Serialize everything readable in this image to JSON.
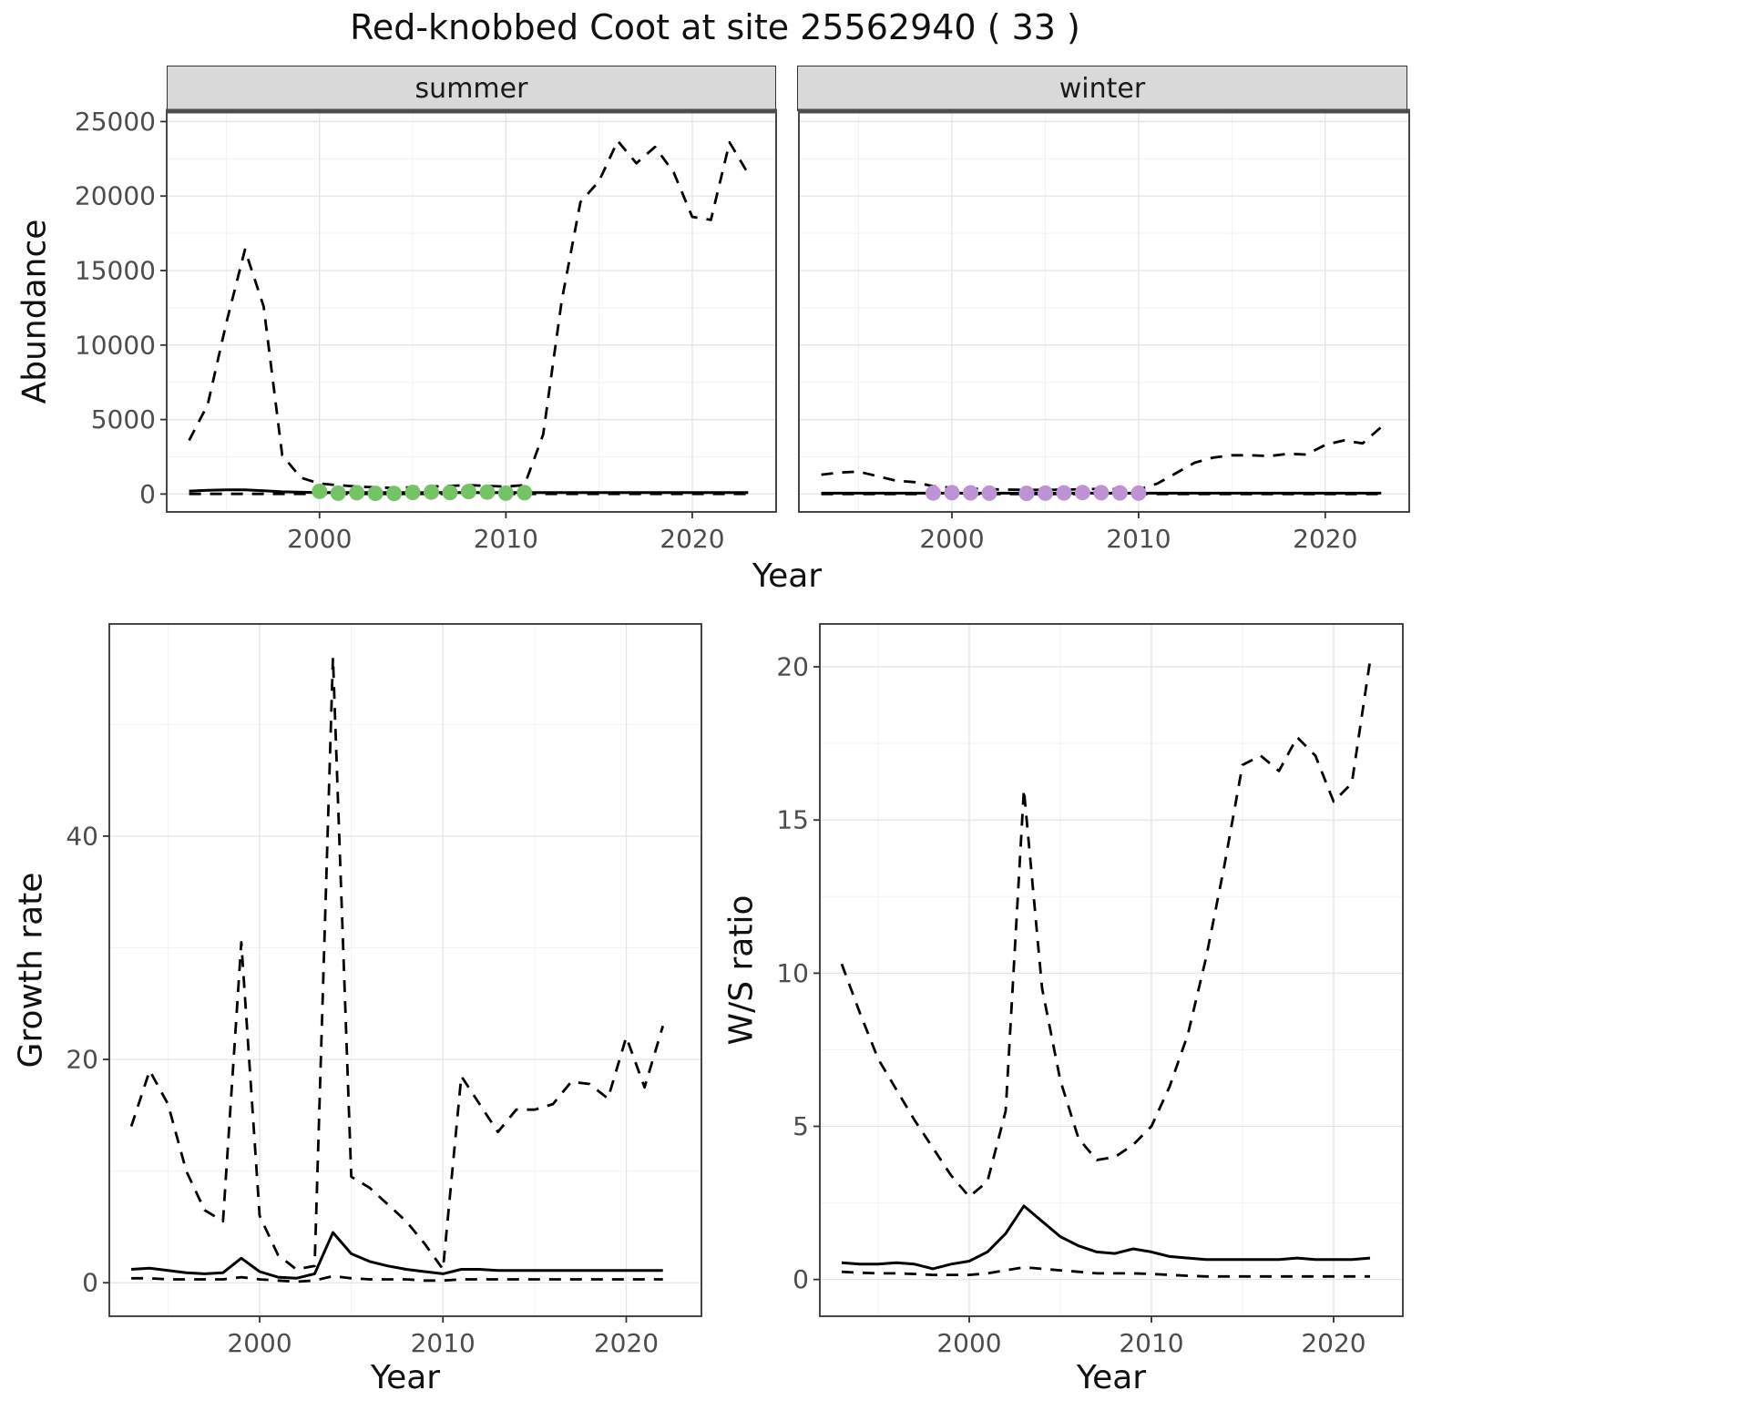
{
  "title": "Red-knobbed Coot at site 25562940 ( 33 )",
  "facets": {
    "summer": "summer",
    "winter": "winter"
  },
  "axis_labels": {
    "x": "Year",
    "abundance": "Abundance",
    "growth_rate": "Growth rate",
    "ws_ratio": "W/S ratio"
  },
  "colors": {
    "line": "#000000",
    "grid_major": "#e5e5e5",
    "grid_minor": "#f2f2f2",
    "panel_border": "#333333",
    "strip_background": "#d9d9d9",
    "summer_points": "#74c365",
    "winter_points": "#bd93d6"
  },
  "chart_data": [
    {
      "id": "abundance-summer",
      "type": "line",
      "facet_label": "summer",
      "xlabel": "Year",
      "ylabel": "Abundance",
      "xlim": [
        1991.8,
        2024.5
      ],
      "ylim": [
        -1200,
        25700
      ],
      "xticks": [
        2000,
        2010,
        2020
      ],
      "yticks": [
        0,
        5000,
        10000,
        15000,
        20000,
        25000
      ],
      "grid": true,
      "series": [
        {
          "name": "upper-ci",
          "style": "dashed",
          "x": [
            1993,
            1994,
            1995,
            1996,
            1997,
            1998,
            1999,
            2000,
            2001,
            2002,
            2003,
            2004,
            2005,
            2006,
            2007,
            2008,
            2009,
            2010,
            2011,
            2012,
            2013,
            2014,
            2015,
            2016,
            2017,
            2018,
            2019,
            2020,
            2021,
            2022,
            2023
          ],
          "y": [
            3600,
            6000,
            11500,
            16400,
            12600,
            2600,
            1100,
            700,
            600,
            500,
            450,
            400,
            450,
            500,
            550,
            600,
            550,
            500,
            600,
            4000,
            13000,
            19600,
            21000,
            23700,
            22200,
            23300,
            21600,
            18600,
            18400,
            23600,
            21500
          ]
        },
        {
          "name": "mean",
          "style": "solid",
          "x": [
            1993,
            1994,
            1995,
            1996,
            1997,
            1998,
            1999,
            2000,
            2001,
            2002,
            2003,
            2004,
            2005,
            2006,
            2007,
            2008,
            2009,
            2010,
            2011,
            2012,
            2013,
            2014,
            2015,
            2016,
            2017,
            2018,
            2019,
            2020,
            2021,
            2022,
            2023
          ],
          "y": [
            200,
            250,
            280,
            280,
            220,
            150,
            120,
            100,
            100,
            100,
            100,
            100,
            100,
            100,
            100,
            100,
            100,
            100,
            100,
            100,
            100,
            100,
            100,
            100,
            100,
            100,
            100,
            100,
            100,
            100,
            100
          ]
        },
        {
          "name": "lower-ci",
          "style": "dashed",
          "x": [
            1993,
            1994,
            1995,
            1996,
            1997,
            1998,
            1999,
            2000,
            2001,
            2002,
            2003,
            2004,
            2005,
            2006,
            2007,
            2008,
            2009,
            2010,
            2011,
            2012,
            2013,
            2014,
            2015,
            2016,
            2017,
            2018,
            2019,
            2020,
            2021,
            2022,
            2023
          ],
          "y": [
            10,
            10,
            10,
            10,
            10,
            10,
            10,
            10,
            10,
            10,
            10,
            10,
            10,
            10,
            10,
            10,
            10,
            10,
            10,
            10,
            10,
            10,
            10,
            10,
            10,
            10,
            10,
            10,
            10,
            10,
            10
          ]
        },
        {
          "name": "observed-counts",
          "style": "points",
          "color": "#74c365",
          "x": [
            2000,
            2001,
            2002,
            2003,
            2004,
            2005,
            2006,
            2007,
            2008,
            2009,
            2010,
            2011
          ],
          "y": [
            180,
            60,
            90,
            50,
            40,
            110,
            130,
            100,
            170,
            130,
            60,
            90
          ]
        }
      ]
    },
    {
      "id": "abundance-winter",
      "type": "line",
      "facet_label": "winter",
      "xlabel": "Year",
      "ylabel": "Abundance",
      "xlim": [
        1991.8,
        2024.5
      ],
      "ylim": [
        -1200,
        25700
      ],
      "xticks": [
        2000,
        2010,
        2020
      ],
      "yticks": [
        0,
        5000,
        10000,
        15000,
        20000,
        25000
      ],
      "grid": true,
      "series": [
        {
          "name": "upper-ci",
          "style": "dashed",
          "x": [
            1993,
            1994,
            1995,
            1996,
            1997,
            1998,
            1999,
            2000,
            2001,
            2002,
            2003,
            2004,
            2005,
            2006,
            2007,
            2008,
            2009,
            2010,
            2011,
            2012,
            2013,
            2014,
            2015,
            2016,
            2017,
            2018,
            2019,
            2020,
            2021,
            2022,
            2023
          ],
          "y": [
            1300,
            1450,
            1500,
            1200,
            900,
            800,
            520,
            420,
            360,
            320,
            300,
            280,
            280,
            300,
            320,
            350,
            320,
            300,
            700,
            1400,
            2100,
            2450,
            2600,
            2600,
            2550,
            2700,
            2650,
            3300,
            3600,
            3400,
            4500
          ]
        },
        {
          "name": "mean",
          "style": "solid",
          "x": [
            1993,
            1994,
            1995,
            1996,
            1997,
            1998,
            1999,
            2000,
            2001,
            2002,
            2003,
            2004,
            2005,
            2006,
            2007,
            2008,
            2009,
            2010,
            2011,
            2012,
            2013,
            2014,
            2015,
            2016,
            2017,
            2018,
            2019,
            2020,
            2021,
            2022,
            2023
          ],
          "y": [
            60,
            60,
            60,
            60,
            60,
            60,
            60,
            60,
            60,
            60,
            60,
            60,
            60,
            60,
            60,
            60,
            60,
            60,
            60,
            60,
            60,
            60,
            60,
            60,
            60,
            60,
            60,
            60,
            60,
            60,
            60
          ]
        },
        {
          "name": "lower-ci",
          "style": "dashed",
          "x": [
            1993,
            1994,
            1995,
            1996,
            1997,
            1998,
            1999,
            2000,
            2001,
            2002,
            2003,
            2004,
            2005,
            2006,
            2007,
            2008,
            2009,
            2010,
            2011,
            2012,
            2013,
            2014,
            2015,
            2016,
            2017,
            2018,
            2019,
            2020,
            2021,
            2022,
            2023
          ],
          "y": [
            5,
            5,
            5,
            5,
            5,
            5,
            5,
            5,
            5,
            5,
            5,
            5,
            5,
            5,
            5,
            5,
            5,
            5,
            5,
            5,
            5,
            5,
            5,
            5,
            5,
            5,
            5,
            5,
            5,
            5,
            5
          ]
        },
        {
          "name": "observed-counts",
          "style": "points",
          "color": "#bd93d6",
          "x": [
            1999,
            2000,
            2001,
            2002,
            2004,
            2005,
            2006,
            2007,
            2008,
            2009,
            2010
          ],
          "y": [
            70,
            90,
            80,
            60,
            50,
            60,
            80,
            100,
            90,
            80,
            60
          ]
        }
      ]
    },
    {
      "id": "growth-rate",
      "type": "line",
      "xlabel": "Year",
      "ylabel": "Growth rate",
      "xlim": [
        1991.8,
        2024.1
      ],
      "ylim": [
        -3,
        59
      ],
      "xticks": [
        2000,
        2010,
        2020
      ],
      "yticks": [
        0,
        20,
        40
      ],
      "grid": true,
      "series": [
        {
          "name": "upper-ci",
          "style": "dashed",
          "x": [
            1993,
            1994,
            1995,
            1996,
            1997,
            1998,
            1999,
            2000,
            2001,
            2002,
            2003,
            2004,
            2005,
            2006,
            2007,
            2008,
            2009,
            2010,
            2011,
            2012,
            2013,
            2014,
            2015,
            2016,
            2017,
            2018,
            2019,
            2020,
            2021,
            2022
          ],
          "y": [
            14,
            19,
            16,
            10,
            6.5,
            5.5,
            30.5,
            6,
            2.5,
            1.2,
            1.5,
            56,
            9.5,
            8.5,
            7,
            5.5,
            3.5,
            1.2,
            18.5,
            16,
            13.5,
            15.5,
            15.5,
            16,
            18,
            17.8,
            16.5,
            22,
            17.5,
            23
          ]
        },
        {
          "name": "mean",
          "style": "solid",
          "x": [
            1993,
            1994,
            1995,
            1996,
            1997,
            1998,
            1999,
            2000,
            2001,
            2002,
            2003,
            2004,
            2005,
            2006,
            2007,
            2008,
            2009,
            2010,
            2011,
            2012,
            2013,
            2014,
            2015,
            2016,
            2017,
            2018,
            2019,
            2020,
            2021,
            2022
          ],
          "y": [
            1.2,
            1.3,
            1.1,
            0.9,
            0.8,
            0.9,
            2.2,
            1.0,
            0.5,
            0.4,
            0.8,
            4.5,
            2.6,
            1.9,
            1.5,
            1.2,
            1.0,
            0.8,
            1.2,
            1.2,
            1.1,
            1.1,
            1.1,
            1.1,
            1.1,
            1.1,
            1.1,
            1.1,
            1.1,
            1.1
          ]
        },
        {
          "name": "lower-ci",
          "style": "dashed",
          "x": [
            1993,
            1994,
            1995,
            1996,
            1997,
            1998,
            1999,
            2000,
            2001,
            2002,
            2003,
            2004,
            2005,
            2006,
            2007,
            2008,
            2009,
            2010,
            2011,
            2012,
            2013,
            2014,
            2015,
            2016,
            2017,
            2018,
            2019,
            2020,
            2021,
            2022
          ],
          "y": [
            0.4,
            0.4,
            0.3,
            0.3,
            0.3,
            0.3,
            0.5,
            0.3,
            0.2,
            0.1,
            0.2,
            0.6,
            0.4,
            0.3,
            0.3,
            0.3,
            0.2,
            0.2,
            0.3,
            0.3,
            0.3,
            0.3,
            0.3,
            0.3,
            0.3,
            0.3,
            0.3,
            0.3,
            0.3,
            0.3
          ]
        }
      ]
    },
    {
      "id": "ws-ratio",
      "type": "line",
      "xlabel": "Year",
      "ylabel": "W/S ratio",
      "xlim": [
        1991.8,
        2023.8
      ],
      "ylim": [
        -1.2,
        21.4
      ],
      "xticks": [
        2000,
        2010,
        2020
      ],
      "yticks": [
        0,
        5,
        10,
        15,
        20
      ],
      "grid": true,
      "series": [
        {
          "name": "upper-ci",
          "style": "dashed",
          "x": [
            1993,
            1994,
            1995,
            1996,
            1997,
            1998,
            1999,
            2000,
            2001,
            2002,
            2003,
            2004,
            2005,
            2006,
            2007,
            2008,
            2009,
            2010,
            2011,
            2012,
            2013,
            2014,
            2015,
            2016,
            2017,
            2018,
            2019,
            2020,
            2021,
            2022
          ],
          "y": [
            10.3,
            8.7,
            7.2,
            6.2,
            5.2,
            4.3,
            3.4,
            2.7,
            3.2,
            5.5,
            16,
            9.5,
            6.5,
            4.6,
            3.9,
            4.0,
            4.4,
            5.0,
            6.3,
            8.0,
            10.5,
            13.5,
            16.8,
            17.1,
            16.6,
            17.7,
            17.1,
            15.6,
            16.2,
            20.2
          ]
        },
        {
          "name": "mean",
          "style": "solid",
          "x": [
            1993,
            1994,
            1995,
            1996,
            1997,
            1998,
            1999,
            2000,
            2001,
            2002,
            2003,
            2004,
            2005,
            2006,
            2007,
            2008,
            2009,
            2010,
            2011,
            2012,
            2013,
            2014,
            2015,
            2016,
            2017,
            2018,
            2019,
            2020,
            2021,
            2022
          ],
          "y": [
            0.55,
            0.5,
            0.5,
            0.55,
            0.5,
            0.35,
            0.5,
            0.6,
            0.9,
            1.5,
            2.4,
            1.9,
            1.4,
            1.1,
            0.9,
            0.85,
            1.0,
            0.9,
            0.75,
            0.7,
            0.65,
            0.65,
            0.65,
            0.65,
            0.65,
            0.7,
            0.65,
            0.65,
            0.65,
            0.7
          ]
        },
        {
          "name": "lower-ci",
          "style": "dashed",
          "x": [
            1993,
            1994,
            1995,
            1996,
            1997,
            1998,
            1999,
            2000,
            2001,
            2002,
            2003,
            2004,
            2005,
            2006,
            2007,
            2008,
            2009,
            2010,
            2011,
            2012,
            2013,
            2014,
            2015,
            2016,
            2017,
            2018,
            2019,
            2020,
            2021,
            2022
          ],
          "y": [
            0.25,
            0.22,
            0.2,
            0.2,
            0.18,
            0.15,
            0.15,
            0.15,
            0.2,
            0.3,
            0.4,
            0.35,
            0.3,
            0.25,
            0.2,
            0.2,
            0.2,
            0.18,
            0.15,
            0.12,
            0.1,
            0.1,
            0.1,
            0.1,
            0.1,
            0.1,
            0.1,
            0.1,
            0.1,
            0.1
          ]
        }
      ]
    }
  ]
}
